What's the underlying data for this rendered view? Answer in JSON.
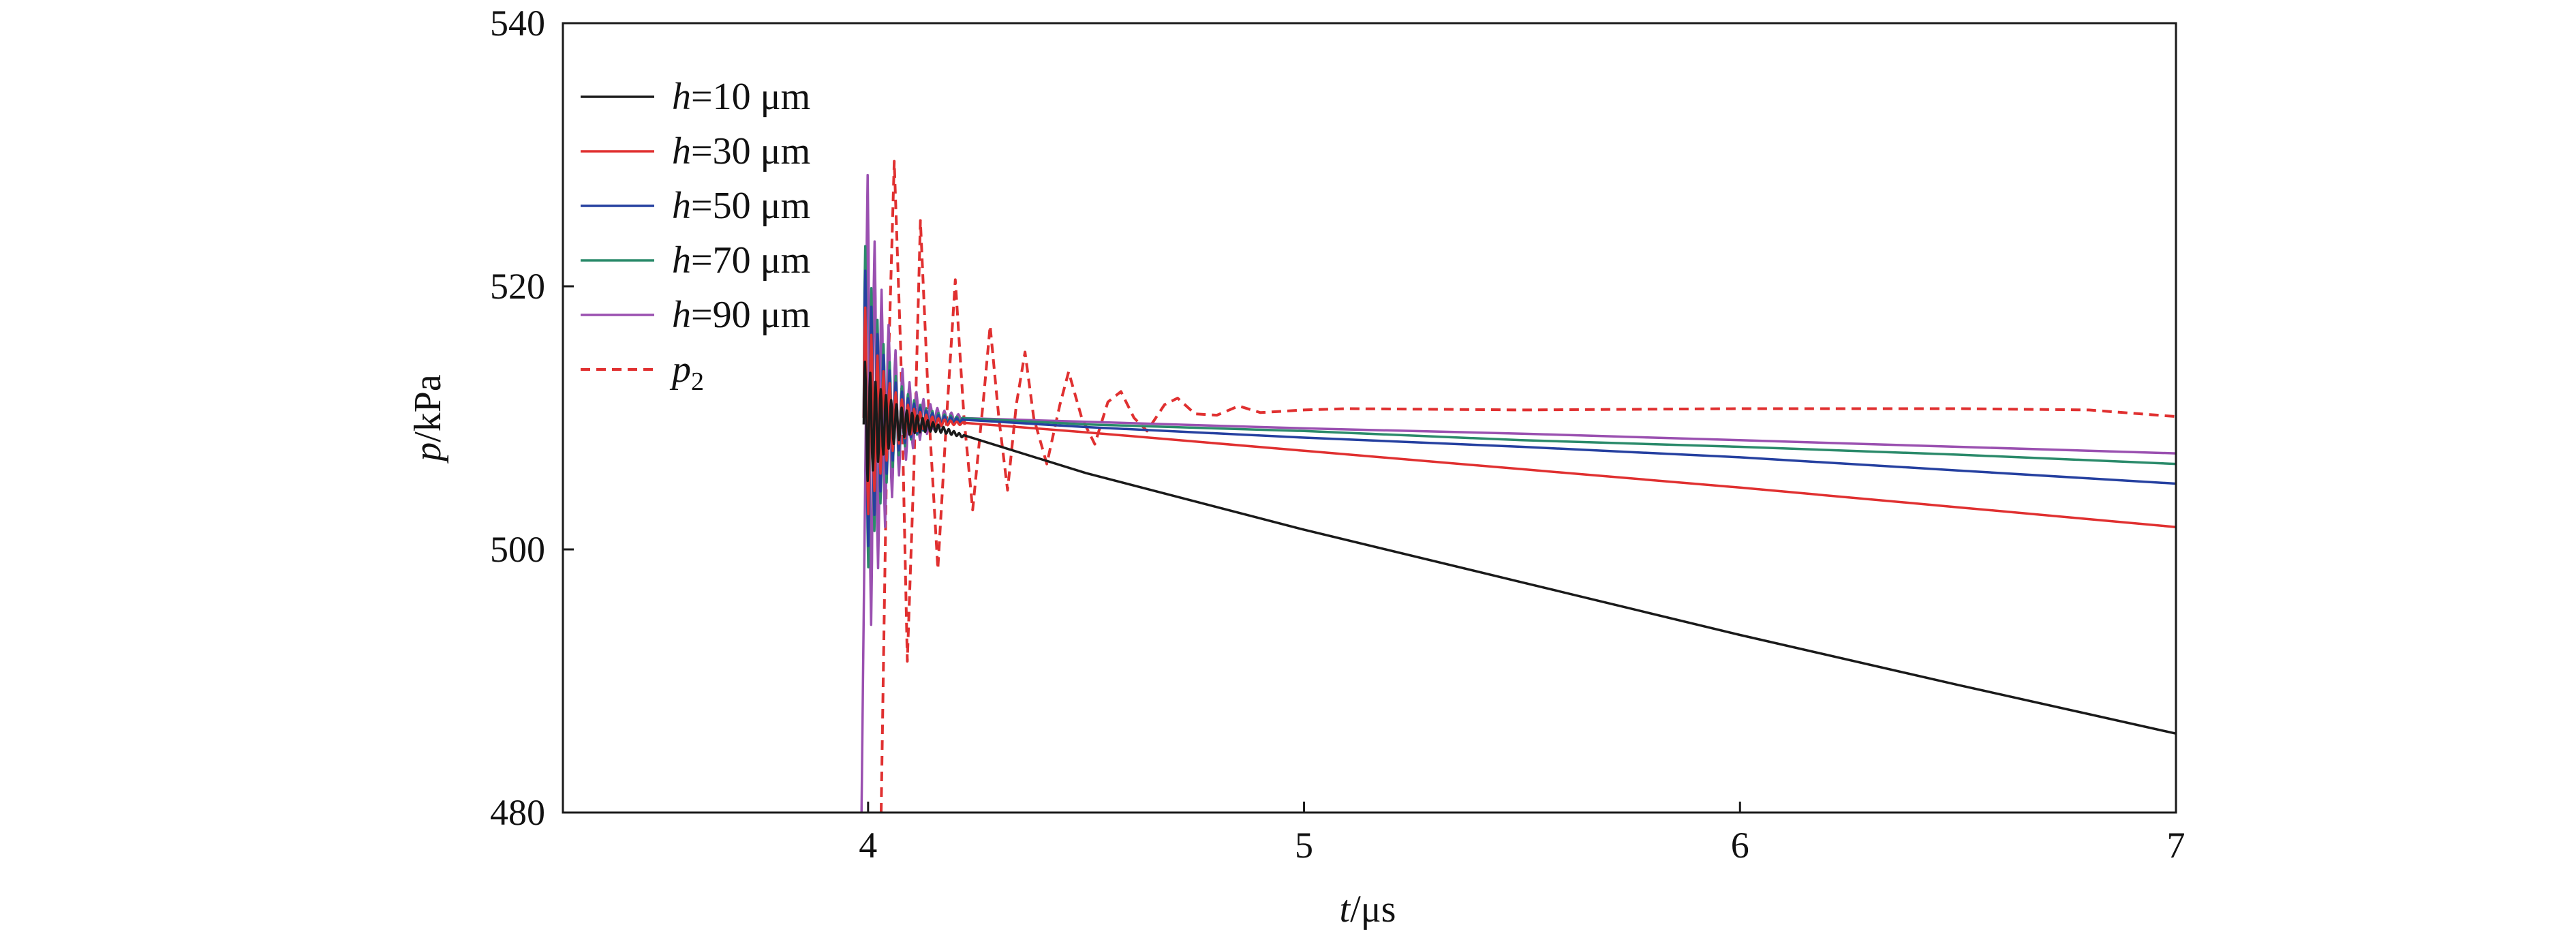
{
  "chart_data": {
    "type": "line",
    "title": "",
    "xlabel": {
      "symbol": "t",
      "unit": "/μs"
    },
    "ylabel": {
      "symbol": "p",
      "unit": "/kPa"
    },
    "xlim": [
      3.3,
      7
    ],
    "ylim": [
      480,
      540
    ],
    "xticks": [
      4,
      5,
      6,
      7
    ],
    "yticks": [
      480,
      500,
      520,
      540
    ],
    "xtick_labels": [
      "4",
      "5",
      "6",
      "7"
    ],
    "ytick_labels": [
      "480",
      "500",
      "520",
      "540"
    ],
    "grid": false,
    "legend_position": "top-left",
    "series": [
      {
        "name": "h=10 μm",
        "symbol": "h",
        "rest": "=10 μm",
        "color": "#1a1a1a",
        "dashed": false,
        "osc": {
          "t0": 3.99,
          "amp": 5,
          "decay": 0.06,
          "period": 0.012,
          "tend": 4.22
        },
        "points": [
          [
            3.99,
            509.5
          ],
          [
            4.05,
            509.6
          ],
          [
            4.1,
            509.6
          ],
          [
            4.15,
            509.3
          ],
          [
            4.2,
            508.8
          ],
          [
            4.5,
            505.8
          ],
          [
            5.0,
            501.5
          ],
          [
            5.5,
            497.5
          ],
          [
            6.0,
            493.5
          ],
          [
            6.5,
            489.7
          ],
          [
            7.0,
            486.0
          ]
        ]
      },
      {
        "name": "h=30 μm",
        "symbol": "h",
        "rest": "=30 μm",
        "color": "#e03030",
        "dashed": false,
        "osc": {
          "t0": 3.99,
          "amp": 9,
          "decay": 0.05,
          "period": 0.014,
          "tend": 4.22
        },
        "points": [
          [
            3.99,
            510
          ],
          [
            4.2,
            509.6
          ],
          [
            4.5,
            508.9
          ],
          [
            5.0,
            507.5
          ],
          [
            5.5,
            506.1
          ],
          [
            6.0,
            504.7
          ],
          [
            6.5,
            503.2
          ],
          [
            7.0,
            501.7
          ]
        ]
      },
      {
        "name": "h=50 μm",
        "symbol": "h",
        "rest": "=50 μm",
        "color": "#2540a0",
        "dashed": false,
        "osc": {
          "t0": 3.99,
          "amp": 12,
          "decay": 0.05,
          "period": 0.014,
          "tend": 4.22
        },
        "points": [
          [
            3.99,
            510
          ],
          [
            4.2,
            509.8
          ],
          [
            4.5,
            509.3
          ],
          [
            5.0,
            508.5
          ],
          [
            5.5,
            507.8
          ],
          [
            6.0,
            507.0
          ],
          [
            6.5,
            506.0
          ],
          [
            7.0,
            505.0
          ]
        ]
      },
      {
        "name": "h=70 μm",
        "symbol": "h",
        "rest": "=70 μm",
        "color": "#2a8a6a",
        "dashed": false,
        "osc": {
          "t0": 3.99,
          "amp": 14,
          "decay": 0.05,
          "period": 0.014,
          "tend": 4.22
        },
        "points": [
          [
            3.99,
            510
          ],
          [
            4.2,
            509.9
          ],
          [
            4.5,
            509.5
          ],
          [
            5.0,
            509.0
          ],
          [
            5.5,
            508.3
          ],
          [
            6.0,
            507.8
          ],
          [
            6.5,
            507.2
          ],
          [
            7.0,
            506.5
          ]
        ]
      },
      {
        "name": "h=90 μm",
        "symbol": "h",
        "rest": "=90 μm",
        "color": "#9a50b0",
        "dashed": false,
        "spike": {
          "t": 3.985,
          "p": 480
        },
        "osc": {
          "t0": 3.995,
          "amp": 20,
          "decay": 0.05,
          "period": 0.016,
          "tend": 4.22
        },
        "points": [
          [
            3.99,
            510
          ],
          [
            4.2,
            510.0
          ],
          [
            4.5,
            509.7
          ],
          [
            5.0,
            509.2
          ],
          [
            5.5,
            508.8
          ],
          [
            6.0,
            508.3
          ],
          [
            6.5,
            507.8
          ],
          [
            7.0,
            507.3
          ]
        ]
      },
      {
        "name": "p2",
        "symbol": "p",
        "subscript": "2",
        "rest": "",
        "color": "#e03030",
        "dashed": true,
        "points": [
          [
            4.03,
            480
          ],
          [
            4.045,
            512
          ],
          [
            4.06,
            529.5
          ],
          [
            4.075,
            515
          ],
          [
            4.09,
            491.5
          ],
          [
            4.105,
            506
          ],
          [
            4.12,
            525
          ],
          [
            4.14,
            510
          ],
          [
            4.16,
            498.5
          ],
          [
            4.18,
            510
          ],
          [
            4.2,
            520.5
          ],
          [
            4.22,
            510
          ],
          [
            4.24,
            503
          ],
          [
            4.265,
            511.5
          ],
          [
            4.28,
            517
          ],
          [
            4.3,
            510
          ],
          [
            4.32,
            504.5
          ],
          [
            4.34,
            511
          ],
          [
            4.36,
            515
          ],
          [
            4.38,
            510
          ],
          [
            4.41,
            506.5
          ],
          [
            4.44,
            511
          ],
          [
            4.46,
            513.5
          ],
          [
            4.49,
            510
          ],
          [
            4.52,
            508
          ],
          [
            4.55,
            511.2
          ],
          [
            4.58,
            512
          ],
          [
            4.61,
            510
          ],
          [
            4.64,
            509
          ],
          [
            4.68,
            511
          ],
          [
            4.71,
            511.5
          ],
          [
            4.75,
            510.3
          ],
          [
            4.8,
            510.2
          ],
          [
            4.85,
            510.9
          ],
          [
            4.9,
            510.4
          ],
          [
            5.0,
            510.6
          ],
          [
            5.1,
            510.7
          ],
          [
            5.5,
            510.6
          ],
          [
            6.0,
            510.7
          ],
          [
            6.5,
            510.7
          ],
          [
            6.8,
            510.6
          ],
          [
            7.0,
            510.1
          ]
        ]
      }
    ]
  }
}
